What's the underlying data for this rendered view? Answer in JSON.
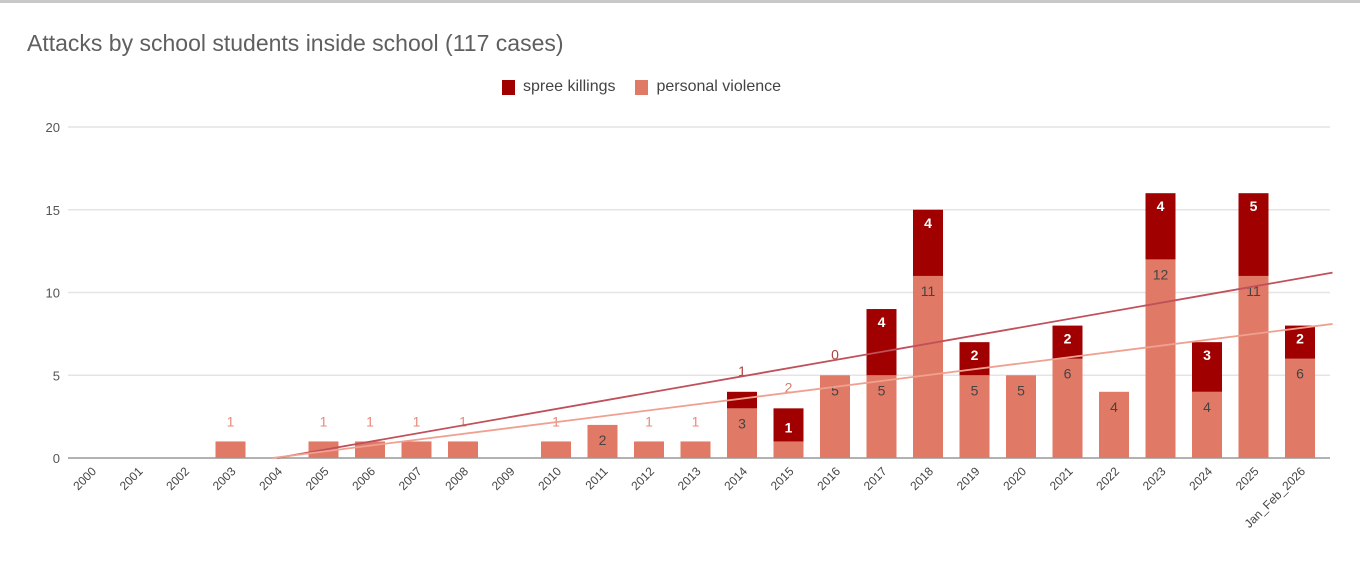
{
  "chart_data": {
    "type": "bar",
    "stacked": true,
    "title": "Attacks by school students inside school (117 cases)",
    "xlabel": "",
    "ylabel": "",
    "ylim": [
      0,
      20
    ],
    "yticks": [
      0,
      5,
      10,
      15,
      20
    ],
    "grid": true,
    "legend_position": "top",
    "categories": [
      "2000",
      "2001",
      "2002",
      "2003",
      "2004",
      "2005",
      "2006",
      "2007",
      "2008",
      "2009",
      "2010",
      "2011",
      "2012",
      "2013",
      "2014",
      "2015",
      "2016",
      "2017",
      "2018",
      "2019",
      "2020",
      "2021",
      "2022",
      "2023",
      "2024",
      "2025",
      "Jan_Feb_2026"
    ],
    "series": [
      {
        "name": "personal violence",
        "color": "#e07a66",
        "values": [
          0,
          0,
          0,
          1,
          0,
          1,
          1,
          1,
          1,
          0,
          1,
          2,
          1,
          1,
          3,
          1,
          5,
          5,
          11,
          5,
          5,
          6,
          4,
          12,
          4,
          11,
          6
        ]
      },
      {
        "name": "spree killings",
        "color": "#a00000",
        "values": [
          0,
          0,
          0,
          0,
          0,
          0,
          0,
          0,
          0,
          0,
          0,
          0,
          0,
          0,
          1,
          2,
          0,
          4,
          4,
          2,
          0,
          2,
          0,
          4,
          3,
          5,
          2
        ],
        "shown_labels": [
          null,
          null,
          null,
          null,
          null,
          null,
          null,
          null,
          null,
          null,
          null,
          null,
          null,
          null,
          1,
          2,
          0,
          4,
          4,
          2,
          null,
          2,
          null,
          4,
          3,
          5,
          2
        ]
      }
    ],
    "trendlines": [
      {
        "series": "total",
        "color": "#c0505a",
        "start": [
          4,
          0
        ],
        "end": [
          26.7,
          11.2
        ]
      },
      {
        "series": "personal violence",
        "color": "#f0a090",
        "start": [
          3.9,
          0
        ],
        "end": [
          26.7,
          8.1
        ]
      }
    ]
  }
}
